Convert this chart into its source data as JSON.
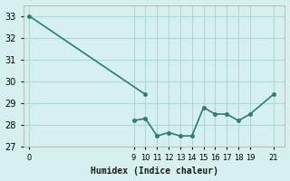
{
  "xlabel": "Humidex (Indice chaleur)",
  "line1_x": [
    0,
    10
  ],
  "line1_y": [
    33,
    29.4
  ],
  "line2_x": [
    9,
    10,
    11,
    12,
    13,
    14,
    15,
    16,
    17,
    18,
    19,
    21
  ],
  "line2_y": [
    28.2,
    28.3,
    27.5,
    27.65,
    27.5,
    27.5,
    28.8,
    28.5,
    28.5,
    28.2,
    28.5,
    29.4
  ],
  "line_color": "#2e7d6e",
  "bg_color": "#d6f0ef",
  "grid_color": "#b0d8d5",
  "ylim": [
    27,
    33.5
  ],
  "xlim": [
    -0.5,
    22
  ],
  "yticks": [
    27,
    28,
    29,
    30,
    31,
    32,
    33
  ],
  "xticks": [
    0,
    9,
    10,
    11,
    12,
    13,
    14,
    15,
    16,
    17,
    18,
    19,
    21
  ],
  "xtick_labels": [
    "0",
    "9",
    "10",
    "11",
    "12",
    "13",
    "14",
    "15",
    "16",
    "17",
    "18",
    "19",
    "21"
  ]
}
